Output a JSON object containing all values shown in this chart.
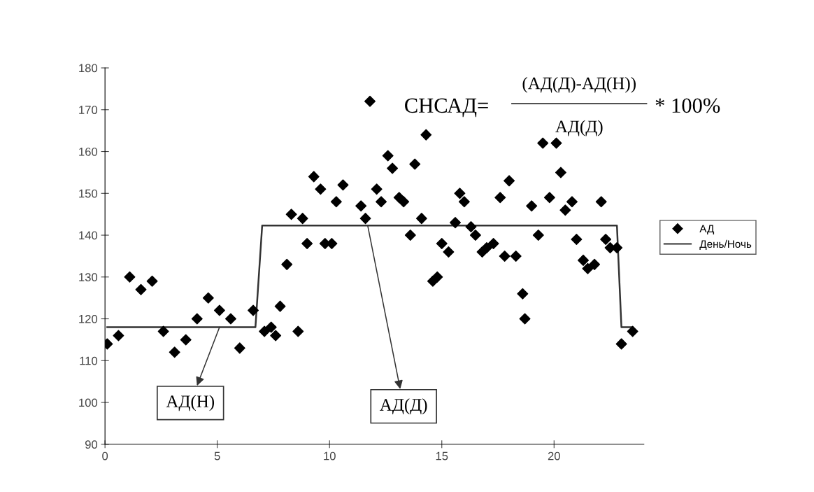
{
  "chart_data": {
    "type": "scatter",
    "xlim": [
      0,
      24
    ],
    "xticks": [
      0,
      5,
      10,
      15,
      20
    ],
    "ylim": [
      90,
      180
    ],
    "yticks": [
      90,
      100,
      110,
      120,
      130,
      140,
      150,
      160,
      170,
      180
    ],
    "grid": false,
    "legend": "right",
    "series": [
      {
        "name": "АД",
        "type": "scatter",
        "marker": "diamond",
        "color": "#000000",
        "x": [
          0.1,
          0.6,
          1.1,
          1.6,
          2.1,
          2.6,
          3.1,
          3.6,
          4.1,
          4.6,
          5.1,
          5.6,
          6.0,
          6.6,
          7.1,
          7.4,
          7.6,
          7.8,
          8.1,
          8.3,
          8.6,
          8.8,
          9.0,
          9.3,
          9.6,
          9.8,
          10.1,
          10.3,
          10.6,
          11.4,
          11.6,
          11.8,
          12.1,
          12.3,
          12.6,
          12.8,
          13.1,
          13.3,
          13.6,
          13.8,
          14.1,
          14.3,
          14.6,
          14.8,
          15.0,
          15.3,
          15.6,
          15.8,
          16.0,
          16.3,
          16.5,
          16.8,
          17.0,
          17.3,
          17.6,
          17.8,
          18.0,
          18.3,
          18.6,
          18.7,
          19.0,
          19.3,
          19.5,
          19.8,
          20.1,
          20.3,
          20.5,
          20.8,
          21.0,
          21.3,
          21.5,
          21.8,
          22.1,
          22.3,
          22.5,
          22.8,
          23.0,
          23.5
        ],
        "values": [
          114,
          116,
          130,
          127,
          129,
          117,
          112,
          115,
          120,
          125,
          122,
          120,
          113,
          122,
          117,
          118,
          116,
          123,
          133,
          145,
          117,
          144,
          138,
          154,
          151,
          138,
          138,
          148,
          152,
          147,
          144,
          172,
          151,
          148,
          159,
          156,
          149,
          148,
          140,
          157,
          144,
          164,
          129,
          130,
          138,
          136,
          143,
          150,
          148,
          142,
          140,
          136,
          137,
          138,
          149,
          135,
          153,
          135,
          126,
          120,
          147,
          140,
          162,
          149,
          162,
          155,
          146,
          148,
          139,
          134,
          132,
          133,
          148,
          139,
          137,
          137,
          114,
          117
        ]
      },
      {
        "name": "День/Ночь",
        "type": "line",
        "marker": "none",
        "line_style": "solid",
        "color": "#333333",
        "x": [
          0.1,
          6.7,
          7.0,
          22.8,
          23.0,
          23.5
        ],
        "values": [
          118,
          118,
          142.3,
          142.3,
          118,
          118
        ]
      }
    ],
    "annotations": [
      "СНСАД=",
      "(АД(Д)-АД(Н))",
      "АД(Д)",
      "* 100%",
      {
        "text": "АД(Н)",
        "x": 5.1,
        "y": 118
      },
      {
        "text": "АД(Д)",
        "x": 11.7,
        "y": 142.3
      }
    ]
  }
}
